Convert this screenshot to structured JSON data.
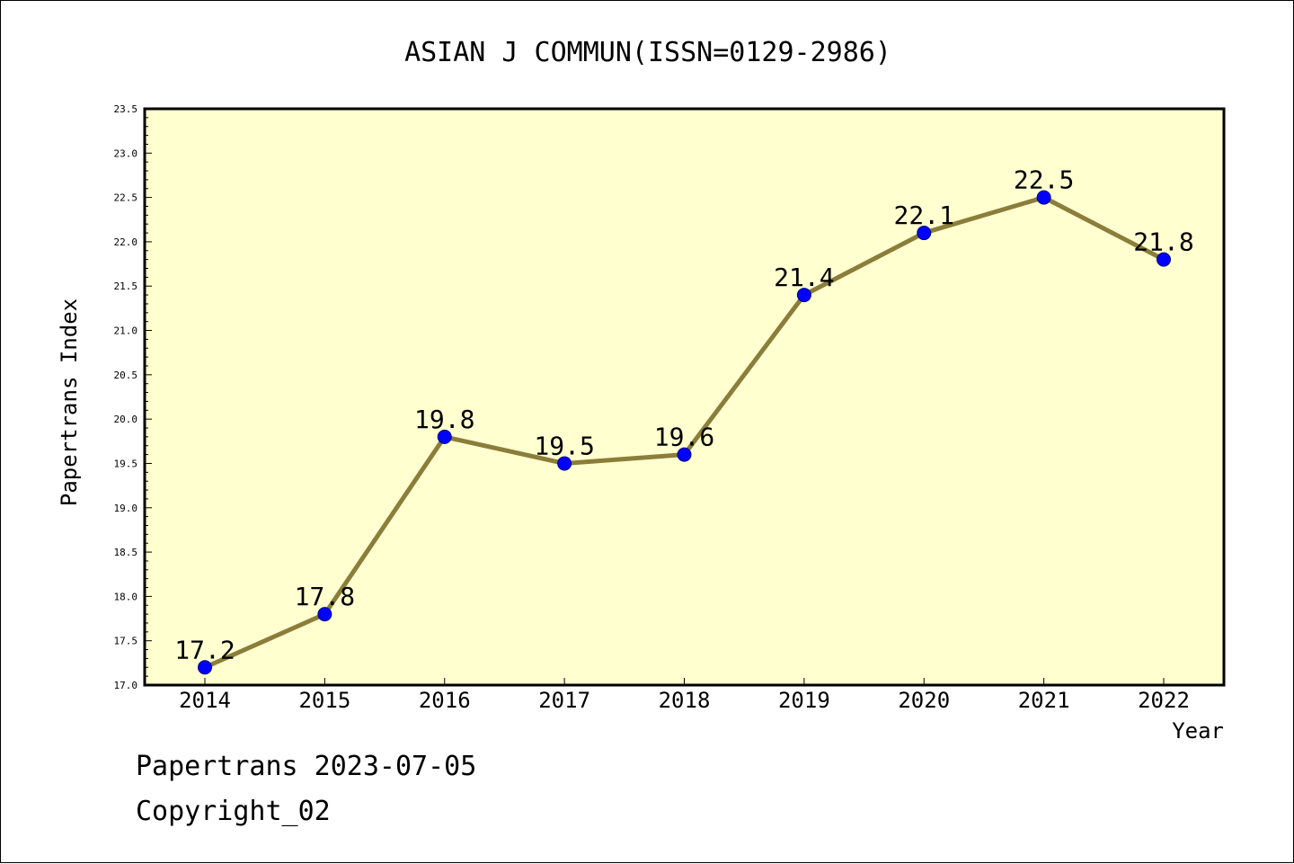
{
  "chart_data": {
    "type": "line",
    "title": "ASIAN J COMMUN(ISSN=0129-2986)",
    "xlabel": "Year",
    "ylabel": "Papertrans Index",
    "categories": [
      "2014",
      "2015",
      "2016",
      "2017",
      "2018",
      "2019",
      "2020",
      "2021",
      "2022"
    ],
    "values": [
      17.2,
      17.8,
      19.8,
      19.5,
      19.6,
      21.4,
      22.1,
      22.5,
      21.8
    ],
    "data_labels": [
      "17.2",
      "17.8",
      "19.8",
      "19.5",
      "19.6",
      "21.4",
      "22.1",
      "22.5",
      "21.8"
    ],
    "ylim": [
      17.0,
      23.5
    ],
    "yticks": [
      "17.0",
      "17.5",
      "18.0",
      "18.5",
      "19.0",
      "19.5",
      "20.0",
      "20.5",
      "21.0",
      "21.5",
      "22.0",
      "22.5",
      "23.0",
      "23.5"
    ],
    "grid": false,
    "legend": "none",
    "colors": {
      "plot_background": "#ffffd0",
      "line": "#8b7d3a",
      "marker": "#0000ff",
      "marker_edge": "#000080"
    }
  },
  "footer": {
    "line1": "Papertrans 2023-07-05",
    "line2": "Copyright_02"
  }
}
